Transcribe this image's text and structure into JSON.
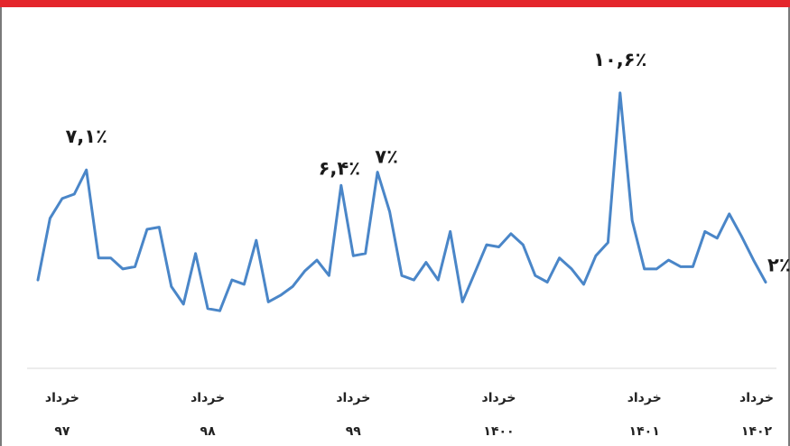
{
  "colors": {
    "line": "#4a86c8",
    "accent": "#e4262b",
    "axis": "#d9d9d9",
    "text": "#1a1a1a"
  },
  "chart_data": {
    "type": "line",
    "title": "",
    "xlabel": "",
    "ylabel": "",
    "grid": false,
    "legend": "none",
    "ylim": [
      -2,
      14
    ],
    "tick_labels": [
      {
        "word": "خرداد",
        "year": "۹۷",
        "index": 2
      },
      {
        "word": "خرداد",
        "year": "۹۸",
        "index": 14
      },
      {
        "word": "خرداد",
        "year": "۹۹",
        "index": 26
      },
      {
        "word": "خرداد",
        "year": "۱۴۰۰",
        "index": 38
      },
      {
        "word": "خرداد",
        "year": "۱۴۰۱",
        "index": 50
      },
      {
        "word": "خرداد",
        "year": "۱۴۰۲",
        "index": 60
      }
    ],
    "series": [
      {
        "values": [
          2.1,
          4.9,
          5.8,
          6.0,
          7.1,
          3.1,
          3.1,
          2.6,
          2.7,
          4.4,
          4.5,
          1.8,
          1.0,
          3.3,
          0.8,
          0.7,
          2.1,
          1.9,
          3.9,
          1.1,
          1.4,
          1.8,
          2.5,
          3.0,
          2.3,
          6.4,
          3.2,
          3.3,
          7.0,
          5.2,
          2.3,
          2.1,
          2.9,
          2.1,
          4.3,
          1.1,
          2.4,
          3.7,
          3.6,
          4.2,
          3.7,
          2.3,
          2.0,
          3.1,
          2.6,
          1.9,
          3.2,
          3.8,
          10.6,
          4.8,
          2.6,
          2.6,
          3.0,
          2.7,
          2.7,
          4.3,
          4.0,
          5.1,
          4.1,
          3.0,
          2.0
        ],
        "color": "#4a86c8"
      }
    ],
    "annotations": [
      {
        "index": 4,
        "text": "۷,۱٪"
      },
      {
        "index": 25,
        "text": "۶,۴٪"
      },
      {
        "index": 28,
        "text": "۷٪"
      },
      {
        "index": 48,
        "text": "۱۰,۶٪"
      },
      {
        "index": 60,
        "text": "۲٪"
      }
    ]
  }
}
